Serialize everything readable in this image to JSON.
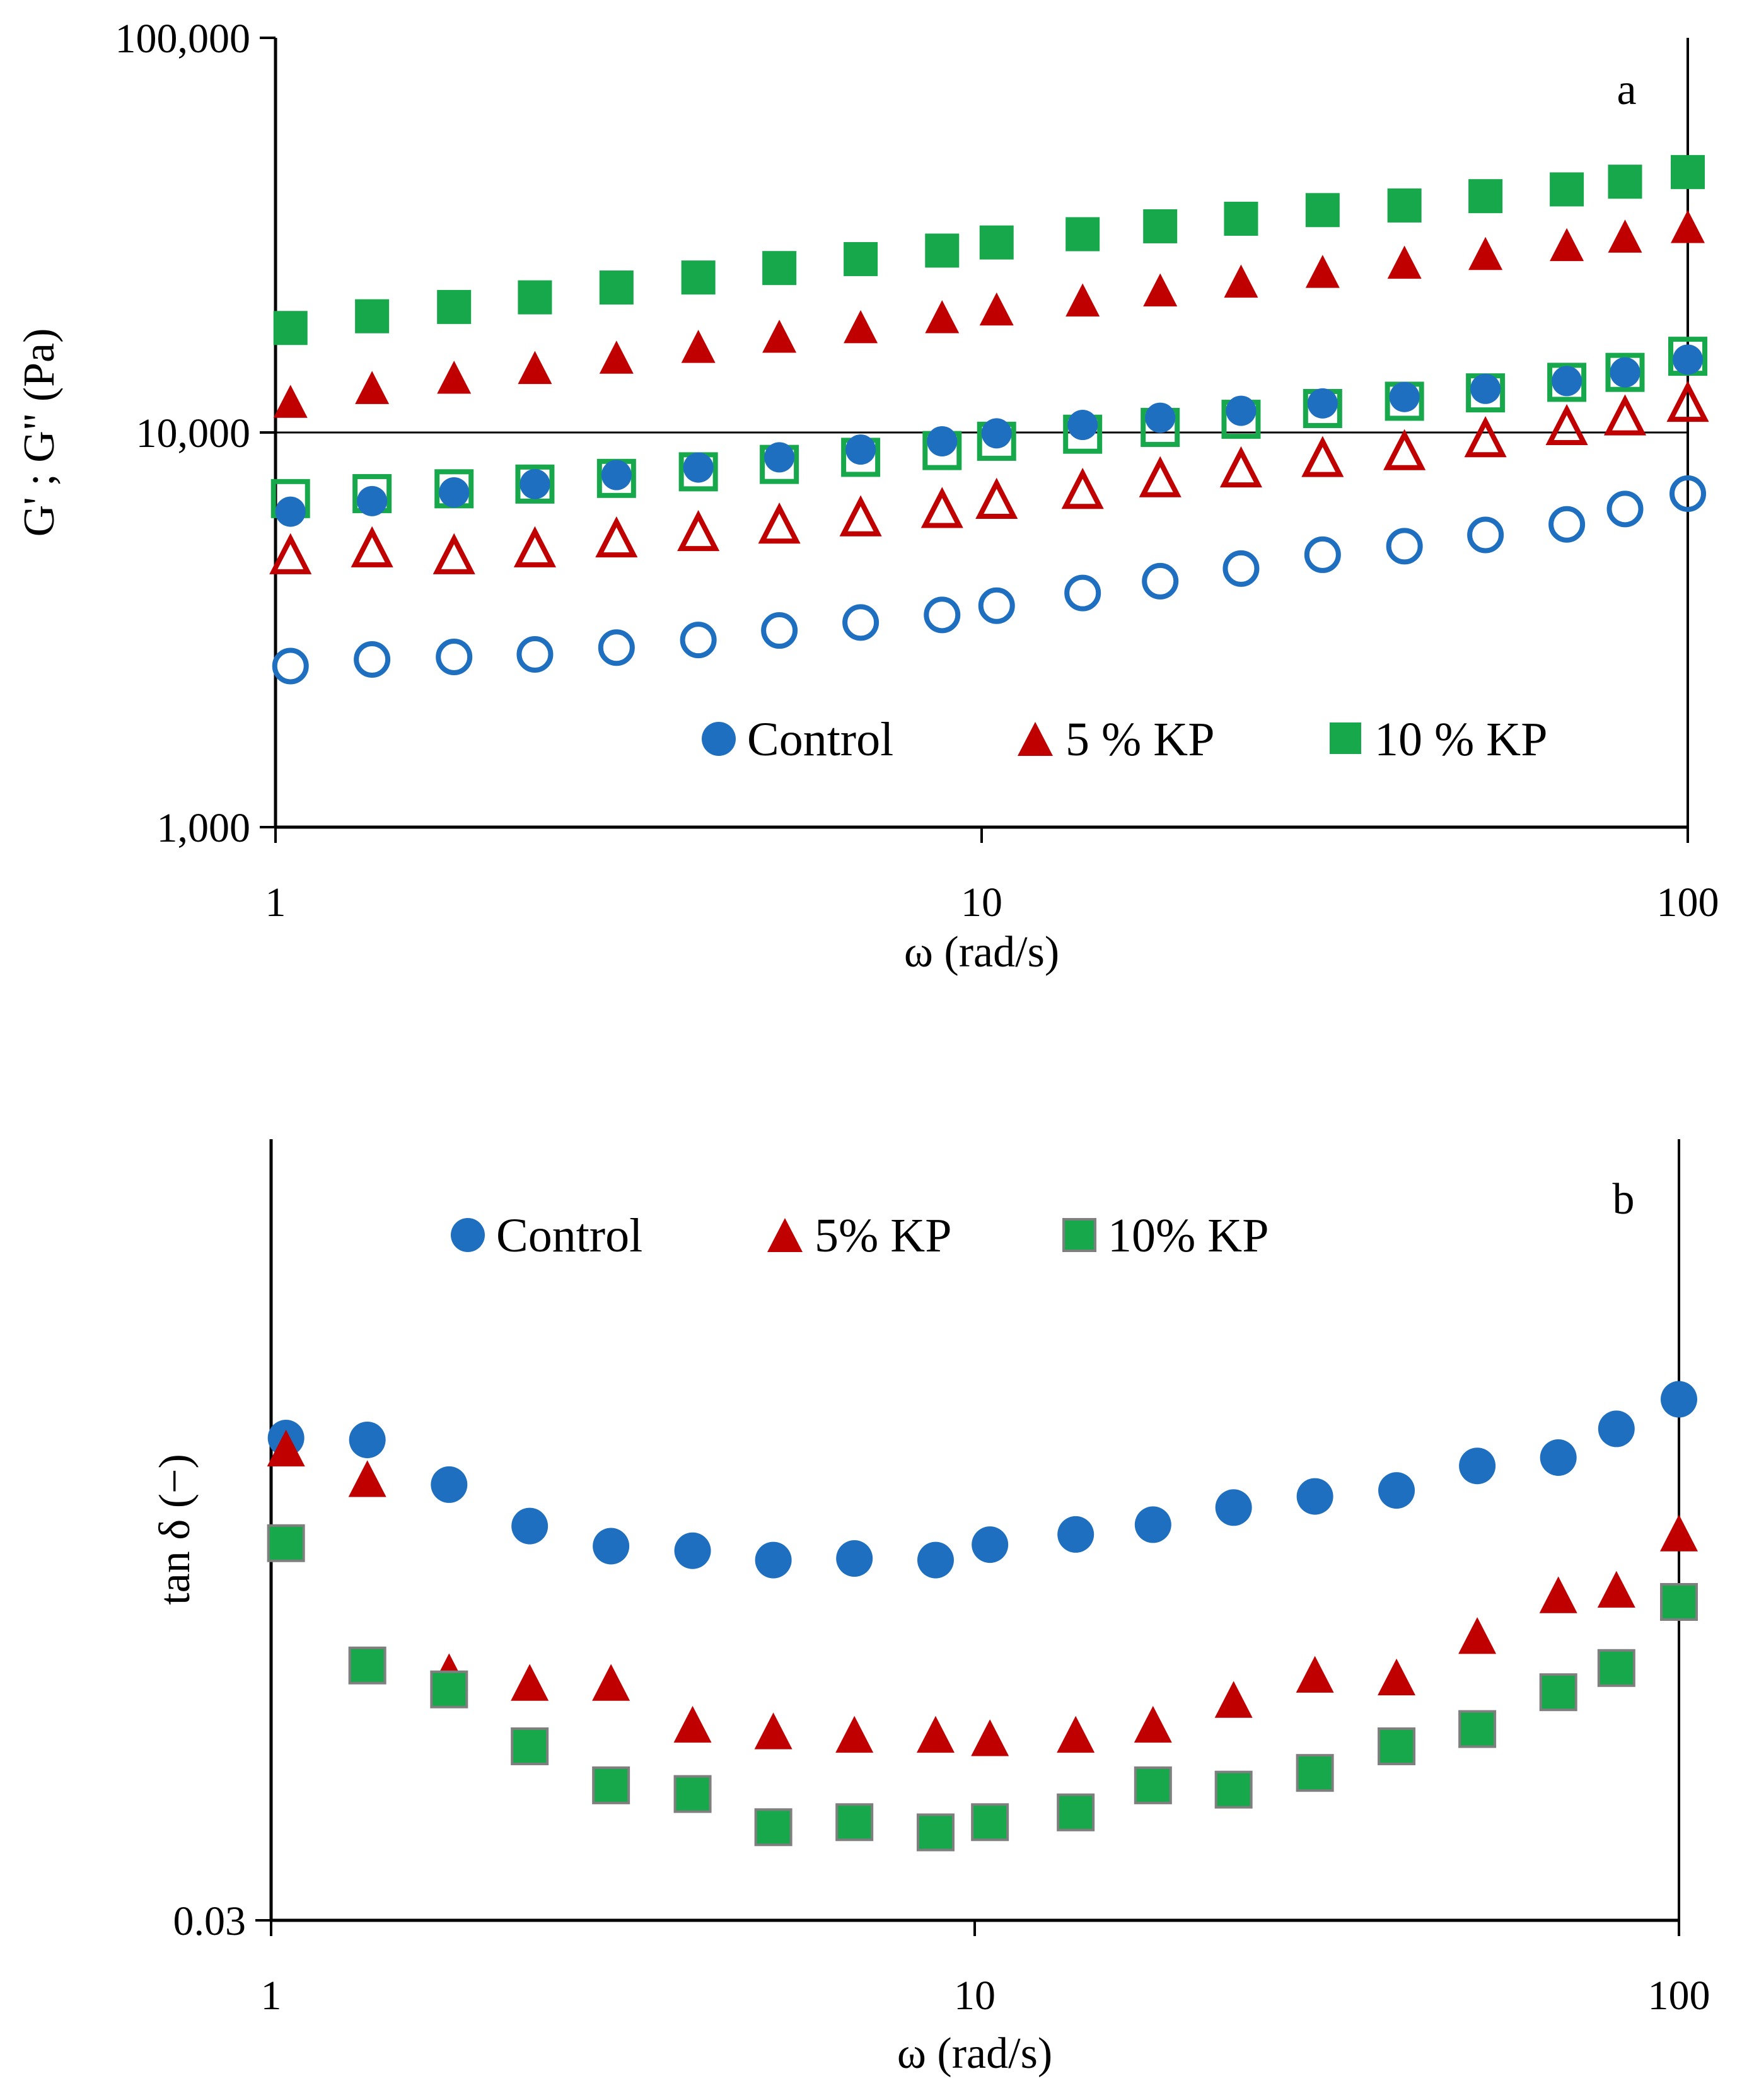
{
  "chart_data": [
    {
      "type": "scatter",
      "panel_label": "a",
      "scale": "log-log",
      "xlabel": "ω (rad/s)",
      "ylabel": "G' ; G\" (Pa)",
      "xlim": [
        1,
        100
      ],
      "ylim": [
        1000,
        100000
      ],
      "x_ticks": [
        {
          "value": 1,
          "label": "1"
        },
        {
          "value": 10,
          "label": "10"
        },
        {
          "value": 100,
          "label": "100"
        }
      ],
      "y_ticks": [
        {
          "value": 1000,
          "label": "1,000"
        },
        {
          "value": 10000,
          "label": "10,000"
        },
        {
          "value": 100000,
          "label": "100,000"
        }
      ],
      "gridlines_y": [
        10000
      ],
      "legend": {
        "position": "bottom-right",
        "entries": [
          "Control",
          "5 % KP",
          "10 % KP"
        ]
      },
      "x": [
        1.05,
        1.37,
        1.79,
        2.33,
        3.04,
        3.97,
        5.17,
        6.74,
        8.79,
        10.5,
        13.9,
        17.9,
        23.3,
        30.4,
        39.7,
        51.7,
        67.4,
        81.5,
        100
      ],
      "series": [
        {
          "name": "Control",
          "modulus": "G'",
          "marker": "circle",
          "filled": true,
          "color": "#1f6fc0",
          "values": [
            6300,
            6700,
            7050,
            7400,
            7800,
            8150,
            8650,
            9050,
            9500,
            9950,
            10450,
            10900,
            11350,
            11850,
            12300,
            12900,
            13500,
            14200,
            15300
          ]
        },
        {
          "name": "Control",
          "modulus": "G\"",
          "marker": "circle",
          "filled": false,
          "color": "#1f6fc0",
          "values": [
            2560,
            2660,
            2700,
            2740,
            2850,
            2980,
            3150,
            3300,
            3450,
            3640,
            3920,
            4200,
            4520,
            4900,
            5150,
            5500,
            5850,
            6400,
            7000
          ]
        },
        {
          "name": "5 % KP",
          "modulus": "G'",
          "marker": "triangle",
          "filled": true,
          "color": "#c00000",
          "values": [
            11900,
            12900,
            13700,
            14500,
            15400,
            16400,
            17400,
            18400,
            19500,
            20400,
            21500,
            22800,
            24000,
            25400,
            26800,
            28200,
            29700,
            31200,
            33000
          ]
        },
        {
          "name": "5 % KP",
          "modulus": "G\"",
          "marker": "triangle",
          "filled": false,
          "color": "#c00000",
          "values": [
            4850,
            5050,
            4850,
            5050,
            5350,
            5550,
            5800,
            6050,
            6350,
            6700,
            7100,
            7600,
            8050,
            8550,
            8900,
            9600,
            10300,
            10900,
            11800
          ]
        },
        {
          "name": "10 % KP",
          "modulus": "G'",
          "marker": "square",
          "filled": true,
          "color": "#18a84c",
          "values": [
            18400,
            19700,
            20800,
            22000,
            23300,
            24700,
            26100,
            27500,
            28900,
            30300,
            31800,
            33300,
            34800,
            36600,
            37600,
            39700,
            41300,
            43200,
            45700
          ]
        },
        {
          "name": "10 % KP",
          "modulus": "G\"",
          "marker": "square",
          "filled": false,
          "color": "#18a84c",
          "values": [
            6800,
            7000,
            7200,
            7400,
            7650,
            7950,
            8300,
            8650,
            9000,
            9500,
            9900,
            10300,
            10800,
            11500,
            12000,
            12600,
            13400,
            14200,
            15600
          ]
        }
      ]
    },
    {
      "type": "scatter",
      "panel_label": "b",
      "scale": "log-log",
      "xlabel": "ω (rad/s)",
      "ylabel": "tan δ (−)",
      "xlim": [
        1,
        100
      ],
      "ylim": [
        0.03,
        0.9
      ],
      "x_ticks": [
        {
          "value": 1,
          "label": "1"
        },
        {
          "value": 10,
          "label": "10"
        },
        {
          "value": 100,
          "label": "100"
        }
      ],
      "y_ticks": [
        {
          "value": 0.03,
          "label": "0.03"
        }
      ],
      "legend": {
        "position": "top",
        "entries": [
          "Control",
          "5% KP",
          "10% KP"
        ]
      },
      "x": [
        1.05,
        1.37,
        1.79,
        2.33,
        3.04,
        3.97,
        5.17,
        6.74,
        8.79,
        10.5,
        13.9,
        17.9,
        23.3,
        30.4,
        39.7,
        51.7,
        67.4,
        81.5,
        100
      ],
      "series": [
        {
          "name": "Control",
          "marker": "circle",
          "color": "#1f6fc0",
          "values": [
            0.245,
            0.243,
            0.2,
            0.167,
            0.153,
            0.15,
            0.144,
            0.145,
            0.144,
            0.154,
            0.161,
            0.168,
            0.181,
            0.19,
            0.195,
            0.217,
            0.225,
            0.255,
            0.29
          ]
        },
        {
          "name": "5% KP",
          "marker": "triangle",
          "color": "#c00000",
          "values": [
            0.233,
            0.204,
            0.088,
            0.084,
            0.084,
            0.07,
            0.068,
            0.067,
            0.067,
            0.066,
            0.067,
            0.07,
            0.078,
            0.087,
            0.086,
            0.103,
            0.123,
            0.126,
            0.161
          ]
        },
        {
          "name": "10% KP",
          "marker": "square",
          "color": "#18a84c",
          "values": [
            0.155,
            0.091,
            0.082,
            0.064,
            0.054,
            0.052,
            0.045,
            0.046,
            0.044,
            0.046,
            0.048,
            0.054,
            0.053,
            0.057,
            0.064,
            0.069,
            0.081,
            0.09,
            0.12
          ]
        }
      ]
    }
  ]
}
